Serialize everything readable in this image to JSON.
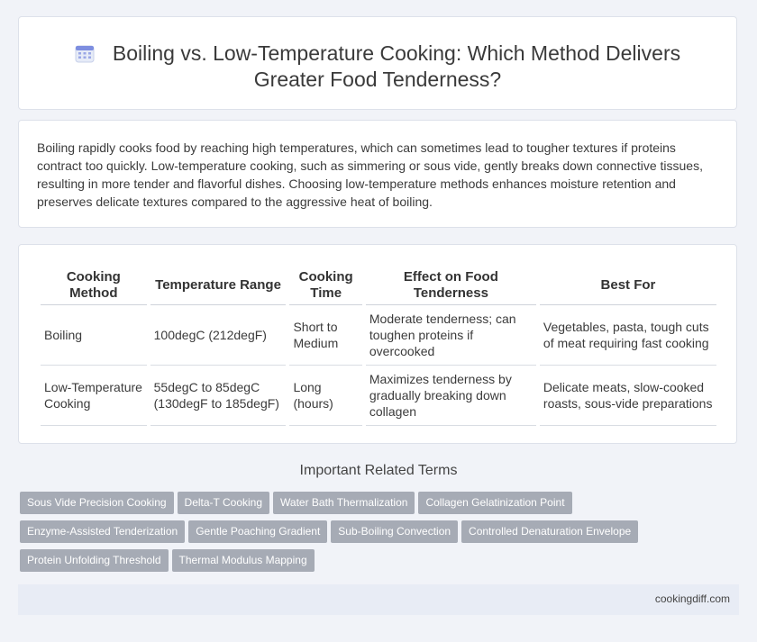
{
  "header": {
    "title_line1": "Boiling vs. Low-Temperature Cooking: Which Method Delivers",
    "title_line2": "Greater Food Tenderness?",
    "icon": "calendar-icon"
  },
  "intro": {
    "text": "Boiling rapidly cooks food by reaching high temperatures, which can sometimes lead to tougher textures if proteins contract too quickly. Low-temperature cooking, such as simmering or sous vide, gently breaks down connective tissues, resulting in more tender and flavorful dishes. Choosing low-temperature methods enhances moisture retention and preserves delicate textures compared to the aggressive heat of boiling."
  },
  "table": {
    "headers": [
      "Cooking Method",
      "Temperature Range",
      "Cooking Time",
      "Effect on Food Tenderness",
      "Best For"
    ],
    "rows": [
      [
        "Boiling",
        "100degC (212degF)",
        "Short to Medium",
        "Moderate tenderness; can toughen proteins if overcooked",
        "Vegetables, pasta, tough cuts of meat requiring fast cooking"
      ],
      [
        "Low-Temperature Cooking",
        "55degC to 85degC (130degF to 185degF)",
        "Long (hours)",
        "Maximizes tenderness by gradually breaking down collagen",
        "Delicate meats, slow-cooked roasts, sous-vide preparations"
      ]
    ]
  },
  "related": {
    "title": "Important Related Terms",
    "tags": [
      "Sous Vide Precision Cooking",
      "Delta-T Cooking",
      "Water Bath Thermalization",
      "Collagen Gelatinization Point",
      "Enzyme-Assisted Tenderization",
      "Gentle Poaching Gradient",
      "Sub-Boiling Convection",
      "Controlled Denaturation Envelope",
      "Protein Unfolding Threshold",
      "Thermal Modulus Mapping"
    ]
  },
  "footer": {
    "site": "cookingdiff.com"
  }
}
